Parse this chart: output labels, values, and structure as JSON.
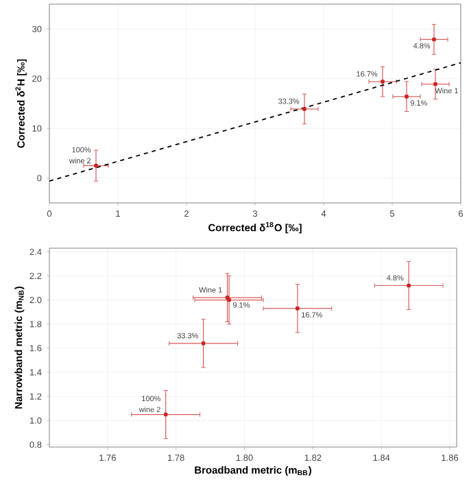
{
  "chart_data": [
    {
      "type": "scatter",
      "xlabel": "Corrected δ$^{18}$O [‰]",
      "ylabel": "Corrected δ$^{2}$H [‰]",
      "xlim": [
        0,
        6
      ],
      "ylim": [
        -5,
        35
      ],
      "xticks": [
        0,
        1,
        2,
        3,
        4,
        5,
        6
      ],
      "yticks": [
        0,
        10,
        20,
        30
      ],
      "grid": true,
      "marker": "square",
      "series": [
        {
          "color": "#cc2222",
          "x": [
            0.68,
            3.72,
            4.86,
            5.21,
            5.63,
            5.61
          ],
          "values": [
            2.5,
            13.9,
            19.4,
            16.4,
            18.9,
            27.9
          ],
          "xerrors": [
            0.18,
            0.2,
            0.2,
            0.2,
            0.2,
            0.2
          ],
          "errors": [
            3.1,
            3,
            3,
            3,
            3,
            3
          ]
        },
        {
          "type": "line",
          "color": "#000000",
          "line_style": "dashed",
          "marker": "none",
          "x": [
            0,
            6
          ],
          "values": [
            -0.6,
            23.2
          ]
        }
      ],
      "annotations": [
        {
          "text": "100%",
          "x": 0.68,
          "y": 2.5
        },
        {
          "text": "wine 2",
          "x": 0.68,
          "y": 2.5
        },
        {
          "text": "33.3%",
          "x": 3.72,
          "y": 13.9
        },
        {
          "text": "16.7%",
          "x": 4.86,
          "y": 19.4
        },
        {
          "text": "9.1%",
          "x": 5.21,
          "y": 16.4
        },
        {
          "text": "Wine 1",
          "x": 5.63,
          "y": 18.9
        },
        {
          "text": "4.8%",
          "x": 5.61,
          "y": 27.9
        }
      ]
    },
    {
      "type": "scatter",
      "xlabel": "Broadband metric (m$_{BB}$)",
      "ylabel": "Narrowband metric (m$_{NB}$)",
      "xlim": [
        1.743,
        1.862
      ],
      "ylim": [
        0.78,
        2.43
      ],
      "xticks": [
        {
          "value": 1.76,
          "label": "1.76"
        },
        {
          "value": 1.78,
          "label": "1.78"
        },
        {
          "value": 1.8,
          "label": "1.80"
        },
        {
          "value": 1.82,
          "label": "1.82"
        },
        {
          "value": 1.84,
          "label": "1.84"
        },
        {
          "value": 1.86,
          "label": "1.86"
        }
      ],
      "yticks": [
        {
          "value": 0.8,
          "label": "0.8"
        },
        {
          "value": 1.0,
          "label": "1.0"
        },
        {
          "value": 1.2,
          "label": "1.2"
        },
        {
          "value": 1.4,
          "label": "1.4"
        },
        {
          "value": 1.6,
          "label": "1.6"
        },
        {
          "value": 1.8,
          "label": "1.8"
        },
        {
          "value": 2.0,
          "label": "2.0"
        },
        {
          "value": 2.2,
          "label": "2.2"
        },
        {
          "value": 2.4,
          "label": "2.4"
        }
      ],
      "grid": true,
      "marker": "square",
      "series": [
        {
          "color": "#cc2222",
          "x": [
            1.777,
            1.788,
            1.795,
            1.7955,
            1.8155,
            1.848
          ],
          "values": [
            1.05,
            1.64,
            2.02,
            2.0,
            1.93,
            2.12
          ],
          "xerrors": [
            0.01,
            0.01,
            0.01,
            0.01,
            0.01,
            0.01
          ],
          "errors": [
            0.2,
            0.2,
            0.2,
            0.2,
            0.2,
            0.2
          ]
        }
      ],
      "annotations": [
        {
          "text": "100%",
          "x": 1.777,
          "y": 1.05
        },
        {
          "text": "wine 2",
          "x": 1.777,
          "y": 1.05
        },
        {
          "text": "33.3%",
          "x": 1.788,
          "y": 1.64
        },
        {
          "text": "Wine 1",
          "x": 1.795,
          "y": 2.02
        },
        {
          "text": "9.1%",
          "x": 1.7955,
          "y": 2.0
        },
        {
          "text": "16.7%",
          "x": 1.8155,
          "y": 1.93
        },
        {
          "text": "4.8%",
          "x": 1.848,
          "y": 2.12
        }
      ]
    }
  ]
}
